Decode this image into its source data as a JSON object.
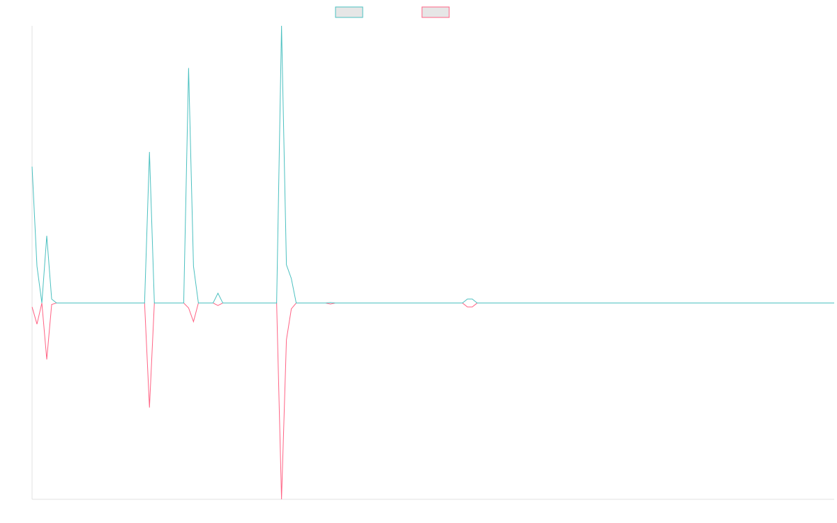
{
  "chart_data": {
    "type": "line",
    "title": "",
    "xlabel": "",
    "ylabel": "",
    "x": [
      0,
      1,
      2,
      3,
      4,
      5,
      6,
      7,
      8,
      9,
      10,
      11,
      12,
      13,
      14,
      15,
      16,
      17,
      18,
      19,
      20,
      21,
      22,
      23,
      24,
      25,
      26,
      27,
      28,
      29,
      30,
      31,
      32,
      33,
      34,
      35,
      36,
      37,
      38,
      39,
      40,
      41,
      42,
      43,
      44,
      45,
      46,
      47,
      48,
      49,
      50,
      51,
      52,
      53,
      54,
      55,
      56,
      57,
      58,
      59,
      60,
      61,
      62,
      63,
      64,
      65,
      66,
      67,
      68,
      69,
      70,
      71,
      72,
      73,
      74,
      75,
      76,
      77,
      78,
      79,
      80,
      81,
      82,
      83,
      84,
      85,
      86,
      87,
      88,
      89,
      90,
      91,
      92,
      93,
      94,
      95,
      96,
      97,
      98,
      99,
      100,
      101,
      102,
      103,
      104,
      105,
      106,
      107,
      108,
      109,
      110,
      111,
      112,
      113,
      114,
      115,
      116,
      117,
      118,
      119,
      120,
      121,
      122,
      123,
      124,
      125,
      126,
      127,
      128,
      129,
      130,
      131,
      132,
      133,
      134,
      135,
      136,
      137,
      138,
      139,
      140,
      141,
      142,
      143,
      144,
      145,
      146,
      147,
      148,
      149,
      150,
      151,
      152,
      153,
      154,
      155,
      156,
      157,
      158,
      159,
      160,
      161,
      162,
      163,
      164
    ],
    "xlim": [
      0,
      164
    ],
    "ylim": [
      -400,
      565
    ],
    "grid": false,
    "legend_position": "top-center",
    "series": [
      {
        "color": "#4bc0c0",
        "values": [
          278,
          75,
          0,
          137,
          8,
          0,
          0,
          0,
          0,
          0,
          0,
          0,
          0,
          0,
          0,
          0,
          0,
          0,
          0,
          0,
          0,
          0,
          0,
          0,
          308,
          0,
          0,
          0,
          0,
          0,
          0,
          0,
          0,
          0,
          0,
          0,
          0,
          0,
          0,
          0,
          0,
          0,
          0,
          0,
          0,
          0,
          0,
          0,
          0,
          0,
          0,
          0,
          0,
          0,
          0,
          0,
          0,
          0,
          0,
          0,
          0,
          0,
          0,
          0,
          0,
          0,
          0,
          0,
          0,
          0,
          0,
          0,
          0,
          0,
          0,
          0,
          0,
          0,
          0,
          0,
          0,
          0,
          0,
          0,
          0,
          0,
          0,
          0,
          0,
          0,
          0,
          0,
          0,
          0,
          0,
          0,
          0,
          0,
          0,
          0,
          0,
          0,
          0,
          0,
          0,
          0,
          0,
          0,
          0,
          0,
          0,
          0,
          0,
          0,
          0,
          0,
          0,
          0,
          0,
          0,
          0,
          0,
          0,
          0,
          0,
          0,
          0,
          0,
          0,
          0,
          0,
          0,
          0,
          0,
          0,
          0,
          0,
          0,
          0,
          0,
          0,
          0,
          0,
          0,
          0,
          0,
          0,
          0,
          0,
          0,
          0,
          0,
          0,
          0,
          0,
          0,
          0,
          0,
          0,
          0,
          0,
          0,
          0,
          0,
          0
        ]
      },
      {
        "color": "#ff6384",
        "values": [
          -8,
          -43,
          0,
          -115,
          -3,
          0,
          0,
          0,
          0,
          0,
          0,
          0,
          0,
          0,
          0,
          0,
          0,
          0,
          0,
          0,
          0,
          0,
          0,
          0,
          -213,
          0,
          0,
          0,
          0,
          0,
          0,
          0,
          0,
          0,
          0,
          0,
          0,
          0,
          0,
          0,
          0,
          0,
          0,
          0,
          0,
          0,
          0,
          0,
          0,
          0,
          0,
          0,
          0,
          0,
          0,
          0,
          0,
          0,
          0,
          0,
          0,
          0,
          0,
          0,
          0,
          0,
          0,
          0,
          0,
          0,
          0,
          0,
          0,
          0,
          0,
          0,
          0,
          0,
          0,
          0,
          0,
          0,
          0,
          0,
          0,
          0,
          0,
          0,
          0,
          0,
          0,
          0,
          0,
          0,
          0,
          0,
          0,
          0,
          0,
          0,
          0,
          0,
          0,
          0,
          0,
          0,
          0,
          0,
          0,
          0,
          0,
          0,
          0,
          0,
          0,
          0,
          0,
          0,
          0,
          0,
          0,
          0,
          0,
          0,
          0,
          0,
          0,
          0,
          0,
          0,
          0,
          0,
          0,
          0,
          0,
          0,
          0,
          0,
          0,
          0,
          0,
          0,
          0,
          0,
          0,
          0,
          0,
          0,
          0,
          0,
          0,
          0,
          0,
          0,
          0,
          0,
          0,
          0,
          0,
          0,
          0,
          0,
          0,
          0,
          0
        ]
      }
    ],
    "overrides": [
      {
        "x": 31,
        "a": 0,
        "b": 0
      },
      {
        "x": 32,
        "a": 479,
        "b": -10
      },
      {
        "x": 33,
        "a": 75,
        "b": -38
      },
      {
        "x": 34,
        "a": 0,
        "b": 0
      },
      {
        "x": 38,
        "a": 20,
        "b": -5
      },
      {
        "x": 39,
        "a": 0,
        "b": 0
      },
      {
        "x": 50,
        "a": 0,
        "b": 0
      },
      {
        "x": 51,
        "a": 565,
        "b": -400
      },
      {
        "x": 52,
        "a": 78,
        "b": -75
      },
      {
        "x": 53,
        "a": 50,
        "b": -12
      },
      {
        "x": 54,
        "a": 0,
        "b": 0
      },
      {
        "x": 60,
        "a": 0,
        "b": 0
      },
      {
        "x": 61,
        "a": 1,
        "b": -2
      },
      {
        "x": 62,
        "a": 0,
        "b": 0
      },
      {
        "x": 88,
        "a": 0,
        "b": 0
      },
      {
        "x": 89,
        "a": 8,
        "b": -8
      },
      {
        "x": 90,
        "a": 8,
        "b": -8
      },
      {
        "x": 91,
        "a": 0,
        "b": 0
      }
    ]
  }
}
